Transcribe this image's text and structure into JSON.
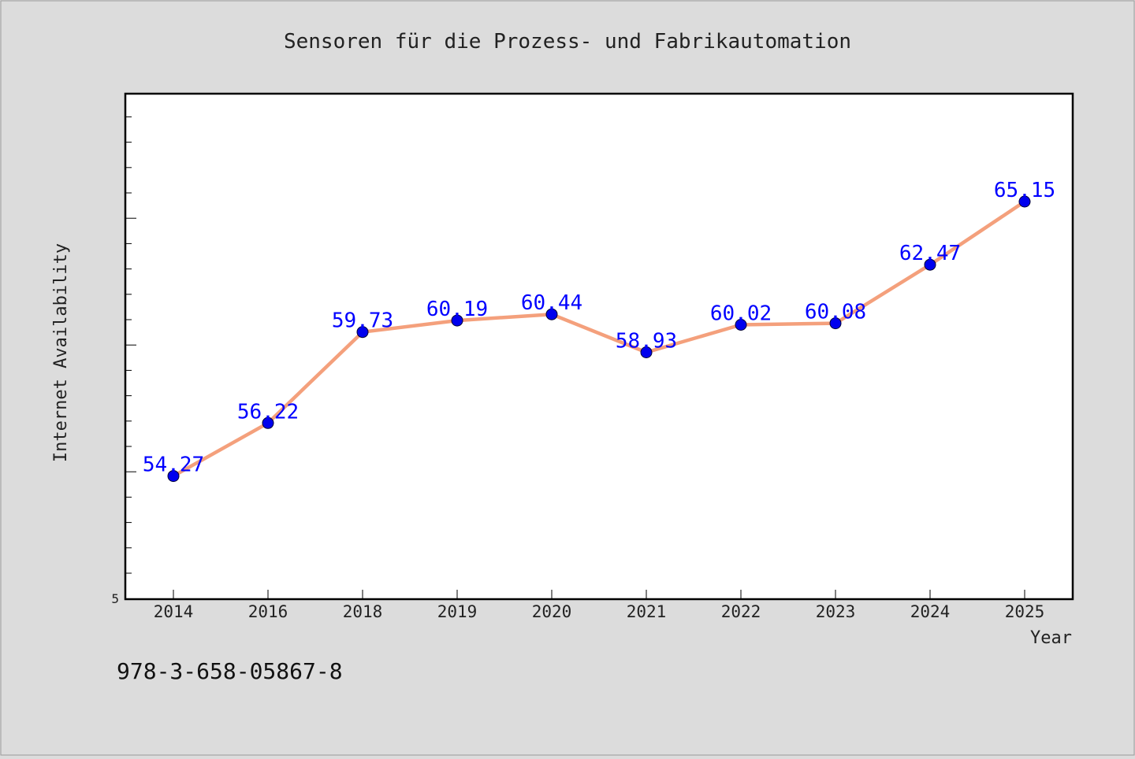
{
  "colors": {
    "background": "#dcdcdc",
    "plot_background": "#ffffff",
    "line": "#f4a07c",
    "marker": "#0000ee",
    "data_label": "#0000ff",
    "text": "#222222"
  },
  "footer_text": "978-3-658-05867-8",
  "chart_data": {
    "type": "line",
    "title": "Sensoren für die Prozess- und Fabrikautomation",
    "xlabel": "Year",
    "ylabel": "Internet Availability",
    "categories": [
      "2014",
      "2016",
      "2018",
      "2019",
      "2020",
      "2021",
      "2022",
      "2023",
      "2024",
      "2025"
    ],
    "series": [
      {
        "values": [
          54.27,
          56.22,
          59.73,
          60.19,
          60.44,
          58.93,
          60.02,
          60.08,
          62.47,
          65.15
        ],
        "labels": [
          "54.27",
          "56.22",
          "59.73",
          "60.19",
          "60.44",
          "58.93",
          "60.02",
          "60.08",
          "62.47",
          "65.15"
        ]
      }
    ],
    "y_axis": {
      "scale": "log",
      "ylim": [
        50,
        70
      ],
      "tick_labels": [
        "5"
      ]
    },
    "grid": false,
    "legend": "none"
  }
}
